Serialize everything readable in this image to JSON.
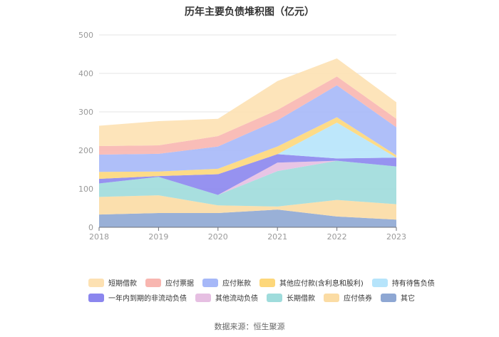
{
  "chart_data": {
    "type": "area",
    "stacked": true,
    "title": "历年主要负债堆积图（亿元）",
    "xlabel": "",
    "ylabel": "",
    "categories": [
      "2018",
      "2019",
      "2020",
      "2021",
      "2022",
      "2023"
    ],
    "ylim": [
      0,
      500
    ],
    "yticks": [
      0,
      100,
      200,
      300,
      400,
      500
    ],
    "grid": true,
    "legend_position": "bottom",
    "series": [
      {
        "name": "其它",
        "color": "#8ea7d3",
        "values": [
          33,
          37,
          37,
          46,
          28,
          20
        ]
      },
      {
        "name": "应付债券",
        "color": "#fbdca4",
        "values": [
          46,
          46,
          20,
          8,
          43,
          40
        ]
      },
      {
        "name": "长期借款",
        "color": "#9fdcdc",
        "values": [
          35,
          48,
          27,
          92,
          102,
          98
        ]
      },
      {
        "name": "其他流动负债",
        "color": "#e6bfe2",
        "values": [
          0,
          0,
          0,
          22,
          0,
          0
        ]
      },
      {
        "name": "一年内到期的非流动负债",
        "color": "#8b86ee",
        "values": [
          12,
          2,
          54,
          22,
          6,
          23
        ]
      },
      {
        "name": "持有待售负债",
        "color": "#b6e4fb",
        "values": [
          0,
          0,
          0,
          0,
          93,
          0
        ]
      },
      {
        "name": "其他应付款(含利息和股利)",
        "color": "#fdd77a",
        "values": [
          18,
          12,
          14,
          20,
          14,
          6
        ]
      },
      {
        "name": "应付账款",
        "color": "#a6b8f8",
        "values": [
          45,
          46,
          58,
          68,
          83,
          73
        ]
      },
      {
        "name": "应付票据",
        "color": "#f8b6b0",
        "values": [
          22,
          22,
          27,
          27,
          23,
          22
        ]
      },
      {
        "name": "短期借款",
        "color": "#fde1b2",
        "values": [
          53,
          63,
          45,
          75,
          47,
          43
        ]
      }
    ]
  },
  "legend_rows": [
    [
      "短期借款",
      "应付票据",
      "应付账款",
      "其他应付款(含利息和股利)",
      "持有待售负债"
    ],
    [
      "一年内到期的非流动负债",
      "其他流动负债",
      "长期借款",
      "应付债券",
      "其它"
    ]
  ],
  "source": "数据来源：恒生聚源"
}
